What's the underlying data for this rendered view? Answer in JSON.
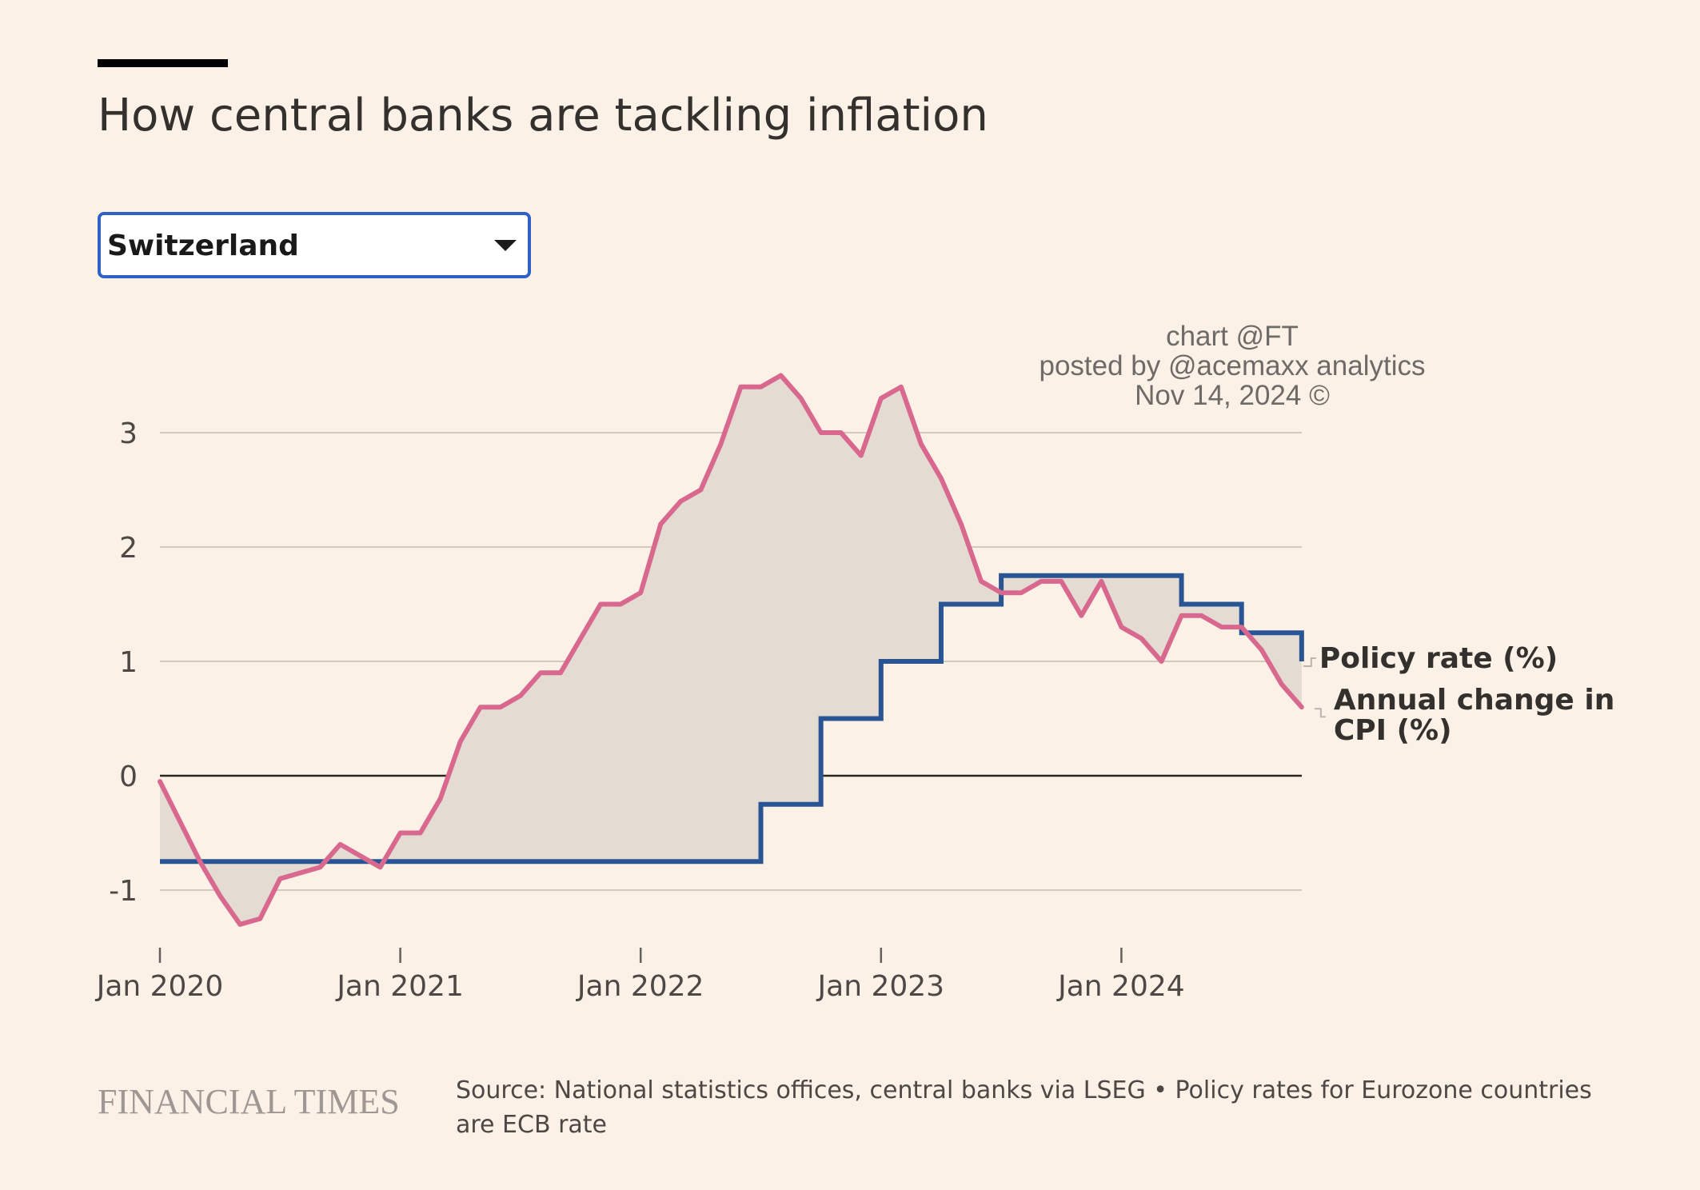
{
  "title": "How central banks are tackling inflation",
  "selector": {
    "selected": "Switzerland"
  },
  "watermark": {
    "line1": "chart @FT",
    "line2": "posted by @acemaxx analytics",
    "line3": "Nov 14, 2024 ©"
  },
  "footer": {
    "logo": "FINANCIAL TIMES",
    "source": "Source: National statistics offices, central banks via LSEG • Policy rates for Eurozone countries are ECB rate"
  },
  "colors": {
    "background": "#fcf1e7",
    "policy": "#2a5595",
    "cpi": "#d9688f",
    "fill": "#e4dbd3",
    "grid": "#d3c9c0",
    "zero": "#2a2624"
  },
  "chart_data": {
    "type": "line",
    "x_unit": "month",
    "xlim": [
      "2020-01",
      "2024-10"
    ],
    "ylim": [
      -1.5,
      3.8
    ],
    "y_ticks": [
      3,
      2,
      1,
      0,
      -1
    ],
    "y_tick_labels": [
      "3",
      "2",
      "1",
      "0",
      "-1"
    ],
    "x_ticks": [
      "2020-01",
      "2021-01",
      "2022-01",
      "2023-01",
      "2024-01"
    ],
    "x_tick_labels": [
      "Jan 2020",
      "Jan 2021",
      "Jan 2022",
      "Jan 2023",
      "Jan 2024"
    ],
    "grid": true,
    "area_between_series": true,
    "series": [
      {
        "name": "Policy rate (%)",
        "color": "#2a5595",
        "points": [
          [
            "2020-01",
            -0.75
          ],
          [
            "2022-06",
            -0.75
          ],
          [
            "2022-07",
            -0.25
          ],
          [
            "2022-08",
            -0.25
          ],
          [
            "2022-09",
            -0.25
          ],
          [
            "2022-10",
            0.5
          ],
          [
            "2022-11",
            0.5
          ],
          [
            "2022-12",
            0.5
          ],
          [
            "2023-01",
            1.0
          ],
          [
            "2023-02",
            1.0
          ],
          [
            "2023-03",
            1.0
          ],
          [
            "2023-04",
            1.5
          ],
          [
            "2023-05",
            1.5
          ],
          [
            "2023-06",
            1.5
          ],
          [
            "2023-07",
            1.75
          ],
          [
            "2023-08",
            1.75
          ],
          [
            "2023-09",
            1.75
          ],
          [
            "2023-10",
            1.75
          ],
          [
            "2023-11",
            1.75
          ],
          [
            "2023-12",
            1.75
          ],
          [
            "2024-01",
            1.75
          ],
          [
            "2024-02",
            1.75
          ],
          [
            "2024-03",
            1.75
          ],
          [
            "2024-04",
            1.5
          ],
          [
            "2024-05",
            1.5
          ],
          [
            "2024-06",
            1.5
          ],
          [
            "2024-07",
            1.25
          ],
          [
            "2024-08",
            1.25
          ],
          [
            "2024-09",
            1.25
          ],
          [
            "2024-10",
            1.0
          ]
        ]
      },
      {
        "name": "Annual change in CPI (%)",
        "color": "#d9688f",
        "points": [
          [
            "2020-01",
            -0.05
          ],
          [
            "2020-02",
            -0.4
          ],
          [
            "2020-03",
            -0.75
          ],
          [
            "2020-04",
            -1.05
          ],
          [
            "2020-05",
            -1.3
          ],
          [
            "2020-06",
            -1.25
          ],
          [
            "2020-07",
            -0.9
          ],
          [
            "2020-08",
            -0.85
          ],
          [
            "2020-09",
            -0.8
          ],
          [
            "2020-10",
            -0.6
          ],
          [
            "2020-11",
            -0.7
          ],
          [
            "2020-12",
            -0.8
          ],
          [
            "2021-01",
            -0.5
          ],
          [
            "2021-02",
            -0.5
          ],
          [
            "2021-03",
            -0.2
          ],
          [
            "2021-04",
            0.3
          ],
          [
            "2021-05",
            0.6
          ],
          [
            "2021-06",
            0.6
          ],
          [
            "2021-07",
            0.7
          ],
          [
            "2021-08",
            0.9
          ],
          [
            "2021-09",
            0.9
          ],
          [
            "2021-10",
            1.2
          ],
          [
            "2021-11",
            1.5
          ],
          [
            "2021-12",
            1.5
          ],
          [
            "2022-01",
            1.6
          ],
          [
            "2022-02",
            2.2
          ],
          [
            "2022-03",
            2.4
          ],
          [
            "2022-04",
            2.5
          ],
          [
            "2022-05",
            2.9
          ],
          [
            "2022-06",
            3.4
          ],
          [
            "2022-07",
            3.4
          ],
          [
            "2022-08",
            3.5
          ],
          [
            "2022-09",
            3.3
          ],
          [
            "2022-10",
            3.0
          ],
          [
            "2022-11",
            3.0
          ],
          [
            "2022-12",
            2.8
          ],
          [
            "2023-01",
            3.3
          ],
          [
            "2023-02",
            3.4
          ],
          [
            "2023-03",
            2.9
          ],
          [
            "2023-04",
            2.6
          ],
          [
            "2023-05",
            2.2
          ],
          [
            "2023-06",
            1.7
          ],
          [
            "2023-07",
            1.6
          ],
          [
            "2023-08",
            1.6
          ],
          [
            "2023-09",
            1.7
          ],
          [
            "2023-10",
            1.7
          ],
          [
            "2023-11",
            1.4
          ],
          [
            "2023-12",
            1.7
          ],
          [
            "2024-01",
            1.3
          ],
          [
            "2024-02",
            1.2
          ],
          [
            "2024-03",
            1.0
          ],
          [
            "2024-04",
            1.4
          ],
          [
            "2024-05",
            1.4
          ],
          [
            "2024-06",
            1.3
          ],
          [
            "2024-07",
            1.3
          ],
          [
            "2024-08",
            1.1
          ],
          [
            "2024-09",
            0.8
          ],
          [
            "2024-10",
            0.6
          ]
        ]
      }
    ]
  }
}
